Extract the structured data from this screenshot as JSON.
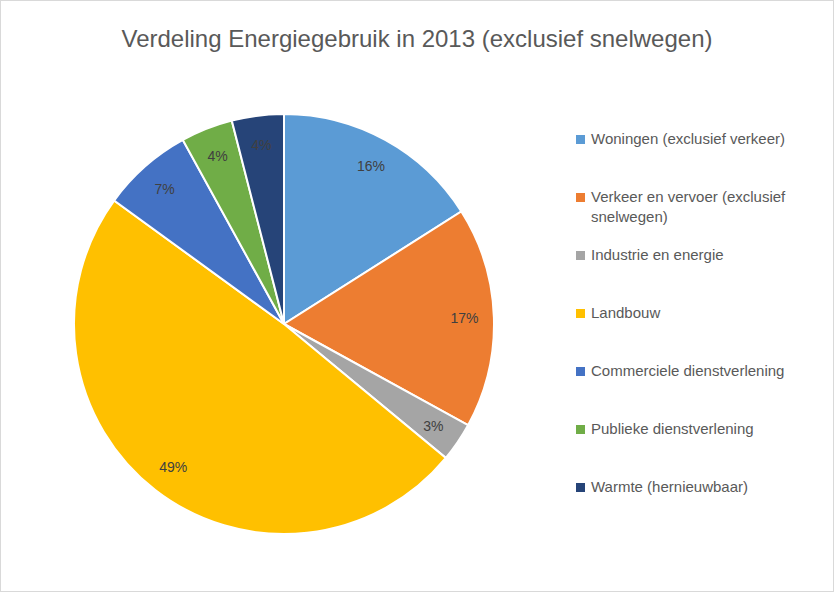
{
  "chart_data": {
    "type": "pie",
    "title": "Verdeling Energiegebruik in 2013 (exclusief snelwegen)",
    "categories": [
      "Woningen (exclusief verkeer)",
      "Verkeer en vervoer (exclusief snelwegen)",
      "Industrie en energie",
      "Landbouw",
      "Commerciele dienstverlening",
      "Publieke dienstverlening",
      "Warmte (hernieuwbaar)"
    ],
    "values": [
      16,
      17,
      3,
      49,
      7,
      4,
      4
    ],
    "value_labels": [
      "16%",
      "17%",
      "3%",
      "49%",
      "7%",
      "4%",
      "4%"
    ],
    "colors": [
      "#5b9bd5",
      "#ed7d31",
      "#a5a5a5",
      "#ffc000",
      "#4472c4",
      "#70ad47",
      "#264478"
    ],
    "data_labels": true,
    "legend": "right"
  }
}
